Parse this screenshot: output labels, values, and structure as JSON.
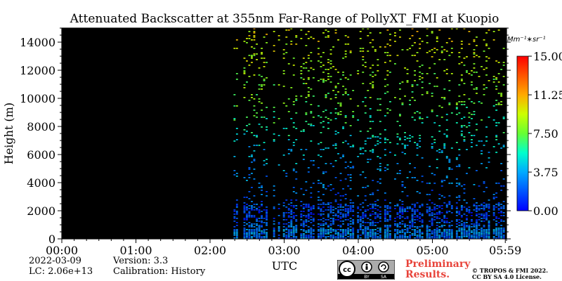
{
  "chart_data": {
    "type": "heatmap",
    "title": "Attenuated Backscatter at 355nm Far-Range of PollyXT_FMI at Kuopio",
    "xlabel": "UTC",
    "ylabel": "Height (m)",
    "x_ticks": [
      "00:00",
      "01:00",
      "02:00",
      "03:00",
      "04:00",
      "05:00",
      "05:59"
    ],
    "y_ticks": [
      "0",
      "2000",
      "4000",
      "6000",
      "8000",
      "10000",
      "12000",
      "14000"
    ],
    "xlim": [
      "00:00",
      "06:00"
    ],
    "ylim": [
      0,
      15000
    ],
    "data_start": "02:19",
    "colorbar": {
      "unit": "Mm^-1*sr^-1",
      "unit_display": "Mm⁻¹∗sr⁻¹",
      "range": [
        0,
        15
      ],
      "ticks": [
        "0.00",
        "3.75",
        "7.50",
        "11.25",
        "15.00"
      ],
      "colormap": "jet"
    },
    "background": "#000000",
    "signal_profile": [
      {
        "height_m": 0,
        "level": 2.5
      },
      {
        "height_m": 500,
        "level": 3.0
      },
      {
        "height_m": 1500,
        "level": 1.5
      },
      {
        "height_m": 2500,
        "level": 2.0
      },
      {
        "height_m": 4000,
        "level": 2.8
      },
      {
        "height_m": 6000,
        "level": 4.2
      },
      {
        "height_m": 8000,
        "level": 6.0
      },
      {
        "height_m": 10000,
        "level": 7.5
      },
      {
        "height_m": 12000,
        "level": 8.5
      },
      {
        "height_m": 14000,
        "level": 9.5
      },
      {
        "height_m": 15000,
        "level": 10.0
      }
    ]
  },
  "meta": {
    "date": "2022-03-09",
    "lc": "LC: 2.06e+13",
    "version": "Version: 3.3",
    "calibration": "Calibration: History"
  },
  "footer": {
    "preliminary_line1": "Preliminary",
    "preliminary_line2": "Results.",
    "copyright_line1": "© TROPOS & FMI 2022.",
    "copyright_line2": "CC BY SA 4.0 License."
  },
  "license_badge": {
    "cc": "cc",
    "by": "BY",
    "sa": "SA"
  },
  "colors": {
    "text": "#000000",
    "preliminary": "#e8433a",
    "plot_background": "#000000"
  }
}
